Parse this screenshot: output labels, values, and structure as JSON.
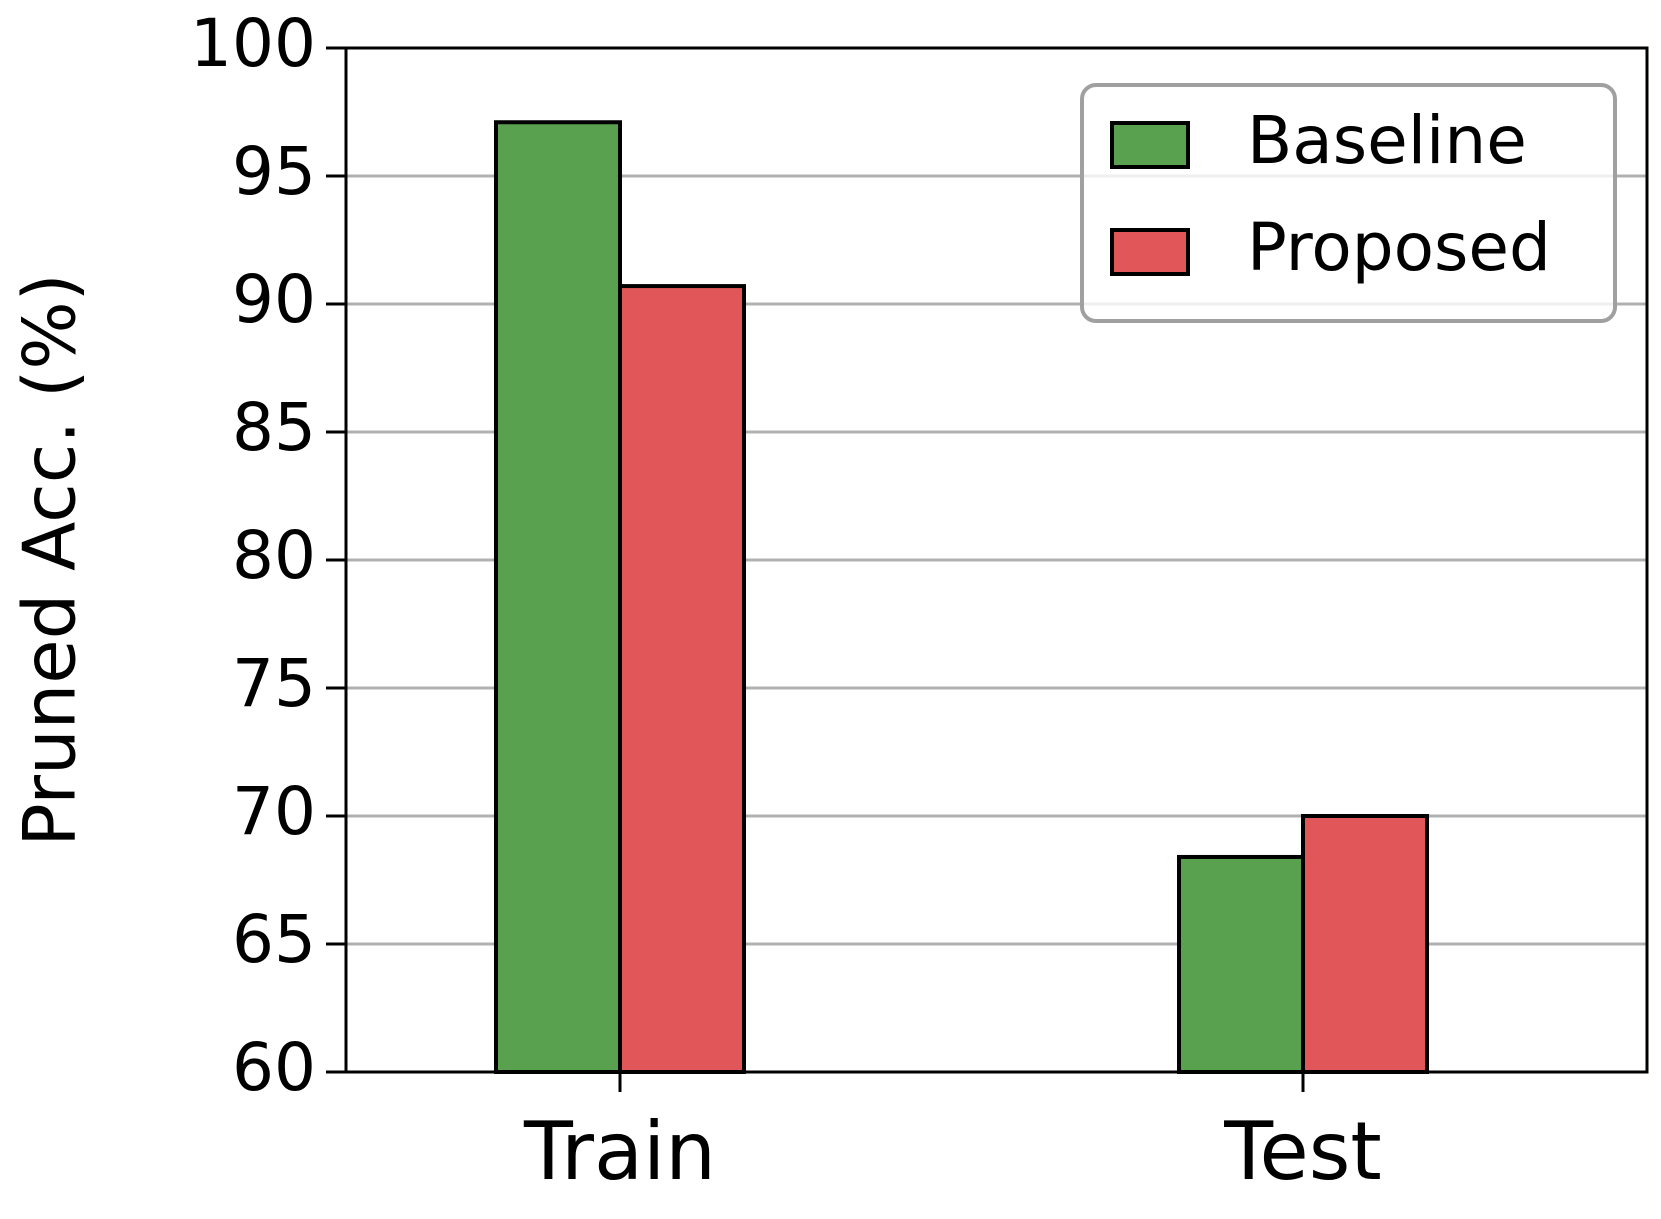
{
  "chart_data": {
    "type": "bar",
    "ylabel": "Pruned Acc. (%)",
    "categories": [
      "Train",
      "Test"
    ],
    "series": [
      {
        "name": "Baseline",
        "color": "#59a14f",
        "values": [
          97.1,
          68.4
        ]
      },
      {
        "name": "Proposed",
        "color": "#e15759",
        "values": [
          90.7,
          70.0
        ]
      }
    ],
    "ylim": [
      60,
      100
    ],
    "yticks": [
      60,
      65,
      70,
      75,
      80,
      85,
      90,
      95,
      100
    ],
    "grid": true,
    "legend": "upper right"
  }
}
